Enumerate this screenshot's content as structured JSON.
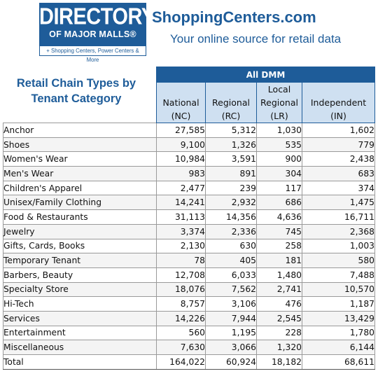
{
  "logo": {
    "line1": "DIRECTORY",
    "line2": "OF MAJOR MALLS®",
    "line3": "+ Shopping Centers, Power Centers & More"
  },
  "site": {
    "title": "ShoppingCenters.com",
    "tagline": "Your online source for retail data"
  },
  "table_title": "Retail Chain Types  by Tenant Category",
  "group_header": "All DMM",
  "columns": [
    {
      "line1": "National",
      "line2": "(NC)"
    },
    {
      "line1": "Regional",
      "line2": "(RC)"
    },
    {
      "line0": "Local",
      "line1": "Regional",
      "line2": "(LR)"
    },
    {
      "line1": "Independent",
      "line2": "(IN)"
    }
  ],
  "rows": [
    {
      "category": "Anchor",
      "nc": "27,585",
      "rc": "5,312",
      "lr": "1,030",
      "in": "1,602"
    },
    {
      "category": "Shoes",
      "nc": "9,100",
      "rc": "1,326",
      "lr": "535",
      "in": "779"
    },
    {
      "category": "Women's Wear",
      "nc": "10,984",
      "rc": "3,591",
      "lr": "900",
      "in": "2,438"
    },
    {
      "category": "Men's Wear",
      "nc": "983",
      "rc": "891",
      "lr": "304",
      "in": "683"
    },
    {
      "category": "Children's Apparel",
      "nc": "2,477",
      "rc": "239",
      "lr": "117",
      "in": "374"
    },
    {
      "category": "Unisex/Family Clothing",
      "nc": "14,241",
      "rc": "2,932",
      "lr": "686",
      "in": "1,475"
    },
    {
      "category": "Food & Restaurants",
      "nc": "31,113",
      "rc": "14,356",
      "lr": "4,636",
      "in": "16,711"
    },
    {
      "category": "Jewelry",
      "nc": "3,374",
      "rc": "2,336",
      "lr": "745",
      "in": "2,368"
    },
    {
      "category": "Gifts, Cards, Books",
      "nc": "2,130",
      "rc": "630",
      "lr": "258",
      "in": "1,003"
    },
    {
      "category": "Temporary Tenant",
      "nc": "78",
      "rc": "405",
      "lr": "181",
      "in": "580"
    },
    {
      "category": "Barbers, Beauty",
      "nc": "12,708",
      "rc": "6,033",
      "lr": "1,480",
      "in": "7,488"
    },
    {
      "category": "Specialty Store",
      "nc": "18,076",
      "rc": "7,562",
      "lr": "2,741",
      "in": "10,570"
    },
    {
      "category": "Hi-Tech",
      "nc": "8,757",
      "rc": "3,106",
      "lr": "476",
      "in": "1,187"
    },
    {
      "category": "Services",
      "nc": "14,226",
      "rc": "7,944",
      "lr": "2,545",
      "in": "13,429"
    },
    {
      "category": "Entertainment",
      "nc": "560",
      "rc": "1,195",
      "lr": "228",
      "in": "1,780"
    },
    {
      "category": "Miscellaneous",
      "nc": "7,630",
      "rc": "3,066",
      "lr": "1,320",
      "in": "6,144"
    },
    {
      "category": "Total",
      "nc": "164,022",
      "rc": "60,924",
      "lr": "18,182",
      "in": "68,611"
    }
  ]
}
